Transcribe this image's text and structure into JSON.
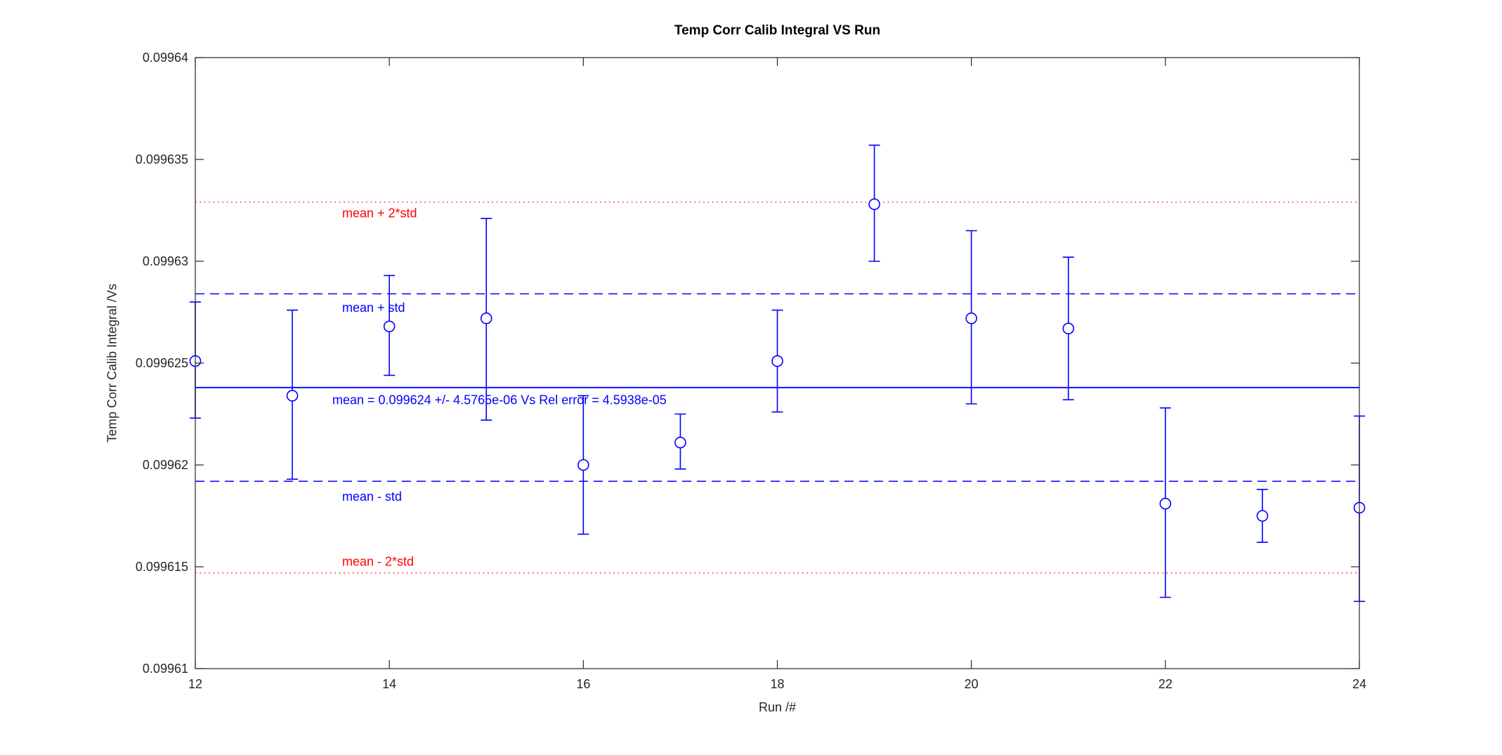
{
  "chart_data": {
    "type": "scatter",
    "title": "Temp Corr Calib Integral VS Run",
    "xlabel": "Run /#",
    "ylabel": "Temp Corr Calib Integral /Vs",
    "xlim": [
      12,
      24
    ],
    "ylim": [
      0.09961,
      0.09964
    ],
    "xticks": [
      12,
      14,
      16,
      18,
      20,
      22,
      24
    ],
    "xtick_labels": [
      "12",
      "14",
      "16",
      "18",
      "20",
      "22",
      "24"
    ],
    "yticks": [
      0.09961,
      0.099615,
      0.09962,
      0.099625,
      0.09963,
      0.099635,
      0.09964
    ],
    "ytick_labels": [
      "0.09961",
      "0.099615",
      "0.09962",
      "0.099625",
      "0.09963",
      "0.099635",
      "0.09964"
    ],
    "grid": false,
    "legend": "none",
    "colors": {
      "data": "#0000ff",
      "sigma_band": "#0000ff",
      "two_sigma_band": "#ff0000",
      "axis": "#262626",
      "title": "#000000"
    },
    "series": [
      {
        "name": "Temp Corr Calib Integral",
        "marker": "open-circle",
        "color": "#0000ff",
        "x": [
          12,
          13,
          14,
          15,
          16,
          17,
          18,
          19,
          20,
          21,
          22,
          23,
          24
        ],
        "y": [
          0.0996251,
          0.0996234,
          0.0996268,
          0.0996272,
          0.09962,
          0.0996211,
          0.0996251,
          0.0996328,
          0.0996272,
          0.0996267,
          0.0996181,
          0.0996175,
          0.0996179
        ],
        "y_upper": [
          0.099628,
          0.0996276,
          0.0996293,
          0.0996321,
          0.0996234,
          0.0996225,
          0.0996276,
          0.0996357,
          0.0996315,
          0.0996302,
          0.0996228,
          0.0996188,
          0.0996224
        ],
        "y_lower": [
          0.0996223,
          0.0996193,
          0.0996244,
          0.0996222,
          0.0996166,
          0.0996198,
          0.0996226,
          0.09963,
          0.099623,
          0.0996232,
          0.0996135,
          0.0996162,
          0.0996133
        ]
      }
    ],
    "stats": {
      "mean": 0.0996238,
      "std": 4.5765e-06,
      "rel_error": 4.5938e-05
    },
    "ref_lines": [
      {
        "id": "mean_plus_2std",
        "value": 0.0996329,
        "style": "dotted",
        "color": "#ff0000",
        "label": "mean + 2*std"
      },
      {
        "id": "mean_plus_std",
        "value": 0.0996284,
        "style": "dashed",
        "color": "#0000ff",
        "label": "mean + std"
      },
      {
        "id": "mean",
        "value": 0.0996238,
        "style": "solid",
        "color": "#0000ff",
        "label": "mean = 0.099624 +/- 4.5765e-06 Vs Rel error = 4.5938e-05"
      },
      {
        "id": "mean_minus_std",
        "value": 0.0996192,
        "style": "dashed",
        "color": "#0000ff",
        "label": "mean - std"
      },
      {
        "id": "mean_minus_2std",
        "value": 0.0996147,
        "style": "dotted",
        "color": "#ff0000",
        "label": "mean - 2*std"
      }
    ]
  }
}
